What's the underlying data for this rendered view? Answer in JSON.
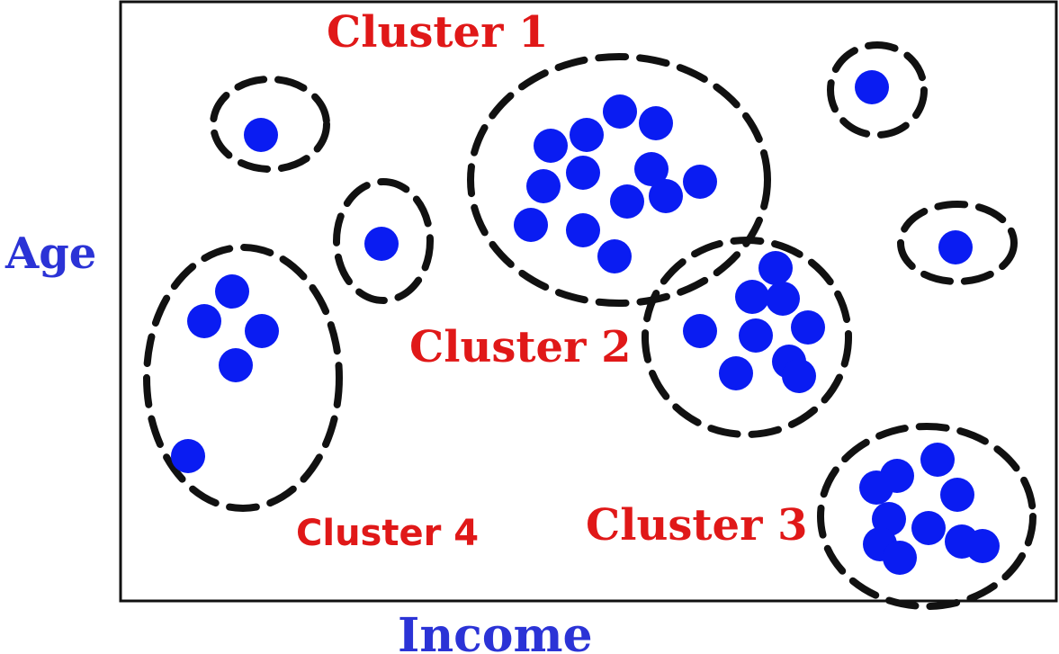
{
  "axes": {
    "x_label": "Income",
    "y_label": "Age"
  },
  "clusters": [
    {
      "label": "Cluster 1"
    },
    {
      "label": "Cluster 2"
    },
    {
      "label": "Cluster 3"
    },
    {
      "label": "Cluster 4"
    }
  ],
  "colors": {
    "points": "#0a1cf2",
    "cluster_labels": "#e01818",
    "axis_labels": "#2b33d6",
    "dashed_outline": "#111111",
    "frame": "#111111"
  }
}
